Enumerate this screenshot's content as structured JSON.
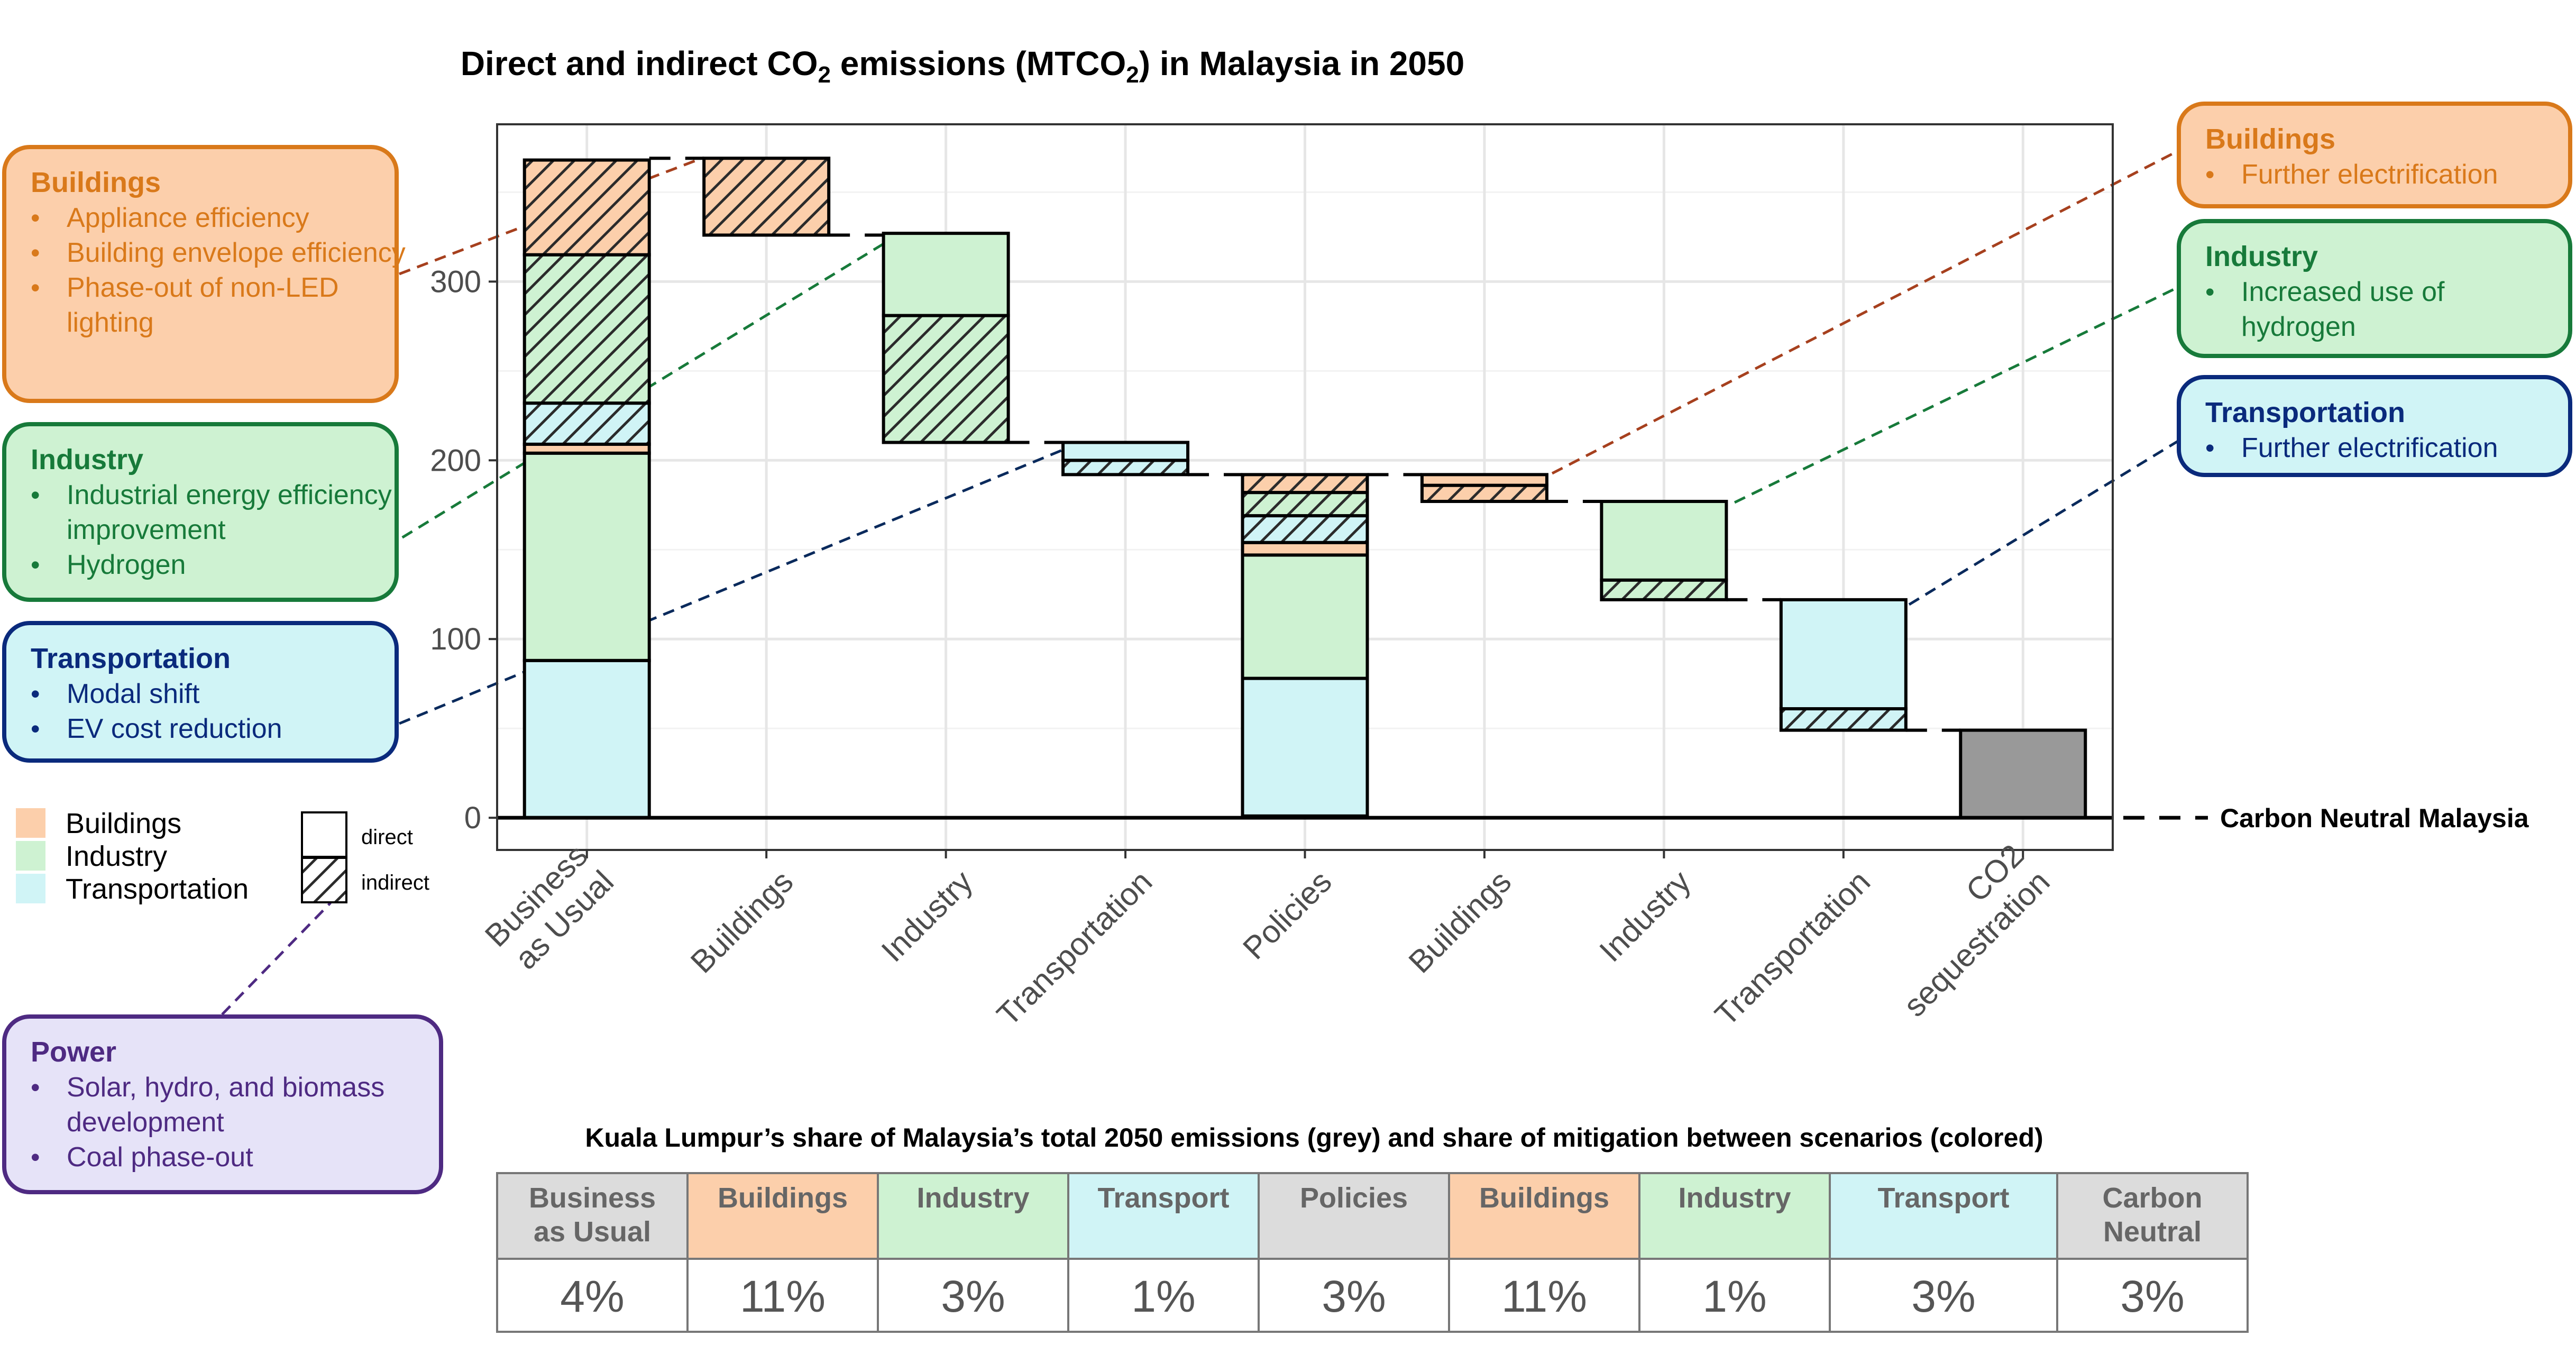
{
  "title_main": "Direct and indirect CO",
  "title_sub2": "2",
  "title_mid": " emissions (MTCO",
  "title_sub2b": "2",
  "title_end": ") in Malaysia in 2050",
  "colors": {
    "buildings_fill": "#FCCFAB",
    "industry_fill": "#CEF2D2",
    "transport_fill": "#D0F4F6",
    "power_fill": "#E6E3F8",
    "sequestration_fill": "#999999",
    "buildings_text": "#D9791A",
    "industry_text": "#177A3A",
    "transport_text": "#0A2A7C",
    "power_text": "#4E2A82",
    "buildings_line": "#A6401E",
    "industry_line": "#177A3A",
    "transport_line": "#0A2A5C",
    "power_line": "#4E2A82"
  },
  "chart_data": {
    "type": "bar",
    "subtype": "waterfall",
    "ylim": [
      -18,
      388
    ],
    "yticks": [
      0,
      100,
      200,
      300
    ],
    "categories": [
      "Business\nas Usual",
      "Buildings",
      "Industry",
      "Transportation",
      "Policies",
      "Buildings",
      "Industry",
      "Transportation",
      "CO2\nsequestration"
    ],
    "bars": [
      {
        "category": "Business\nas Usual",
        "segments": [
          {
            "sector": "Transportation",
            "type": "direct",
            "y0": 0,
            "y1": 88
          },
          {
            "sector": "Industry",
            "type": "direct",
            "y0": 88,
            "y1": 204
          },
          {
            "sector": "Buildings",
            "type": "direct",
            "y0": 204,
            "y1": 209
          },
          {
            "sector": "Transportation",
            "type": "indirect",
            "y0": 209,
            "y1": 232
          },
          {
            "sector": "Industry",
            "type": "indirect",
            "y0": 232,
            "y1": 315
          },
          {
            "sector": "Buildings",
            "type": "indirect",
            "y0": 315,
            "y1": 368
          }
        ]
      },
      {
        "category": "Buildings",
        "segments": [
          {
            "sector": "Buildings",
            "type": "indirect",
            "y0": 326,
            "y1": 369
          }
        ]
      },
      {
        "category": "Industry",
        "segments": [
          {
            "sector": "Industry",
            "type": "indirect",
            "y0": 210,
            "y1": 281
          },
          {
            "sector": "Industry",
            "type": "direct",
            "y0": 281,
            "y1": 327
          }
        ]
      },
      {
        "category": "Transportation",
        "segments": [
          {
            "sector": "Transportation",
            "type": "indirect",
            "y0": 192,
            "y1": 200
          },
          {
            "sector": "Transportation",
            "type": "direct",
            "y0": 200,
            "y1": 210
          }
        ]
      },
      {
        "category": "Policies",
        "segments": [
          {
            "sector": "Transportation",
            "type": "direct",
            "y0": 1,
            "y1": 78
          },
          {
            "sector": "Industry",
            "type": "direct",
            "y0": 78,
            "y1": 147
          },
          {
            "sector": "Buildings",
            "type": "direct",
            "y0": 147,
            "y1": 154
          },
          {
            "sector": "Transportation",
            "type": "indirect",
            "y0": 154,
            "y1": 169
          },
          {
            "sector": "Industry",
            "type": "indirect",
            "y0": 169,
            "y1": 182
          },
          {
            "sector": "Buildings",
            "type": "indirect",
            "y0": 182,
            "y1": 192
          }
        ]
      },
      {
        "category": "Buildings",
        "segments": [
          {
            "sector": "Buildings",
            "type": "indirect",
            "y0": 177,
            "y1": 186
          },
          {
            "sector": "Buildings",
            "type": "direct",
            "y0": 186,
            "y1": 192
          }
        ]
      },
      {
        "category": "Industry",
        "segments": [
          {
            "sector": "Industry",
            "type": "indirect",
            "y0": 122,
            "y1": 133
          },
          {
            "sector": "Industry",
            "type": "direct",
            "y0": 133,
            "y1": 177
          }
        ]
      },
      {
        "category": "Transportation",
        "segments": [
          {
            "sector": "Transportation",
            "type": "indirect",
            "y0": 49,
            "y1": 61
          },
          {
            "sector": "Transportation",
            "type": "direct",
            "y0": 61,
            "y1": 122
          }
        ]
      },
      {
        "category": "CO2\nsequestration",
        "segments": [
          {
            "sector": "Sequestration",
            "type": "direct",
            "y0": 0,
            "y1": 49
          }
        ]
      }
    ],
    "connectors": [
      {
        "from": 0,
        "to": 1,
        "y": 369
      },
      {
        "from": 1,
        "to": 2,
        "y": 326
      },
      {
        "from": 2,
        "to": 3,
        "y": 210
      },
      {
        "from": 3,
        "to": 4,
        "y": 192
      },
      {
        "from": 4,
        "to": 5,
        "y": 192
      },
      {
        "from": 5,
        "to": 6,
        "y": 177
      },
      {
        "from": 6,
        "to": 7,
        "y": 122
      },
      {
        "from": 7,
        "to": 8,
        "y": 49
      }
    ],
    "zero_line_label": "Carbon Neutral Malaysia",
    "legend_sectors": [
      "Buildings",
      "Industry",
      "Transportation"
    ],
    "legend_types": [
      "direct",
      "indirect"
    ]
  },
  "callouts": [
    {
      "id": "buildings-left",
      "sector": "buildings",
      "title": "Buildings",
      "items": [
        "Appliance efficiency",
        "Building envelope efficiency",
        "Phase-out of non-LED lighting"
      ]
    },
    {
      "id": "industry-left",
      "sector": "industry",
      "title": "Industry",
      "items": [
        "Industrial energy efficiency improvement",
        "Hydrogen"
      ]
    },
    {
      "id": "transport-left",
      "sector": "transport",
      "title": "Transportation",
      "items": [
        "Modal shift",
        "EV cost reduction"
      ]
    },
    {
      "id": "power-left",
      "sector": "power",
      "title": "Power",
      "items": [
        "Solar, hydro, and biomass development",
        "Coal phase-out"
      ]
    },
    {
      "id": "buildings-right",
      "sector": "buildings",
      "title": "Buildings",
      "items": [
        "Further electrification"
      ]
    },
    {
      "id": "industry-right",
      "sector": "industry",
      "title": "Industry",
      "items": [
        "Increased use of hydrogen"
      ]
    },
    {
      "id": "transport-right",
      "sector": "transport",
      "title": "Transportation",
      "items": [
        "Further electrification"
      ]
    }
  ],
  "table": {
    "title": "Kuala Lumpur’s share of Malaysia’s total 2050 emissions (grey) and share of mitigation between scenarios (colored)",
    "columns": [
      {
        "label": "Business\nas Usual",
        "value": "4%",
        "color": "#DCDCDC"
      },
      {
        "label": "Buildings",
        "value": "11%",
        "color": "#FCCFAB"
      },
      {
        "label": "Industry",
        "value": "3%",
        "color": "#CEF2D2"
      },
      {
        "label": "Transport",
        "value": "1%",
        "color": "#D0F4F6"
      },
      {
        "label": "Policies",
        "value": "3%",
        "color": "#DCDCDC"
      },
      {
        "label": "Buildings",
        "value": "11%",
        "color": "#FCCFAB"
      },
      {
        "label": "Industry",
        "value": "1%",
        "color": "#CEF2D2"
      },
      {
        "label": "Transport",
        "value": "3%",
        "color": "#D0F4F6"
      },
      {
        "label": "Carbon\nNeutral",
        "value": "3%",
        "color": "#DCDCDC"
      }
    ]
  }
}
